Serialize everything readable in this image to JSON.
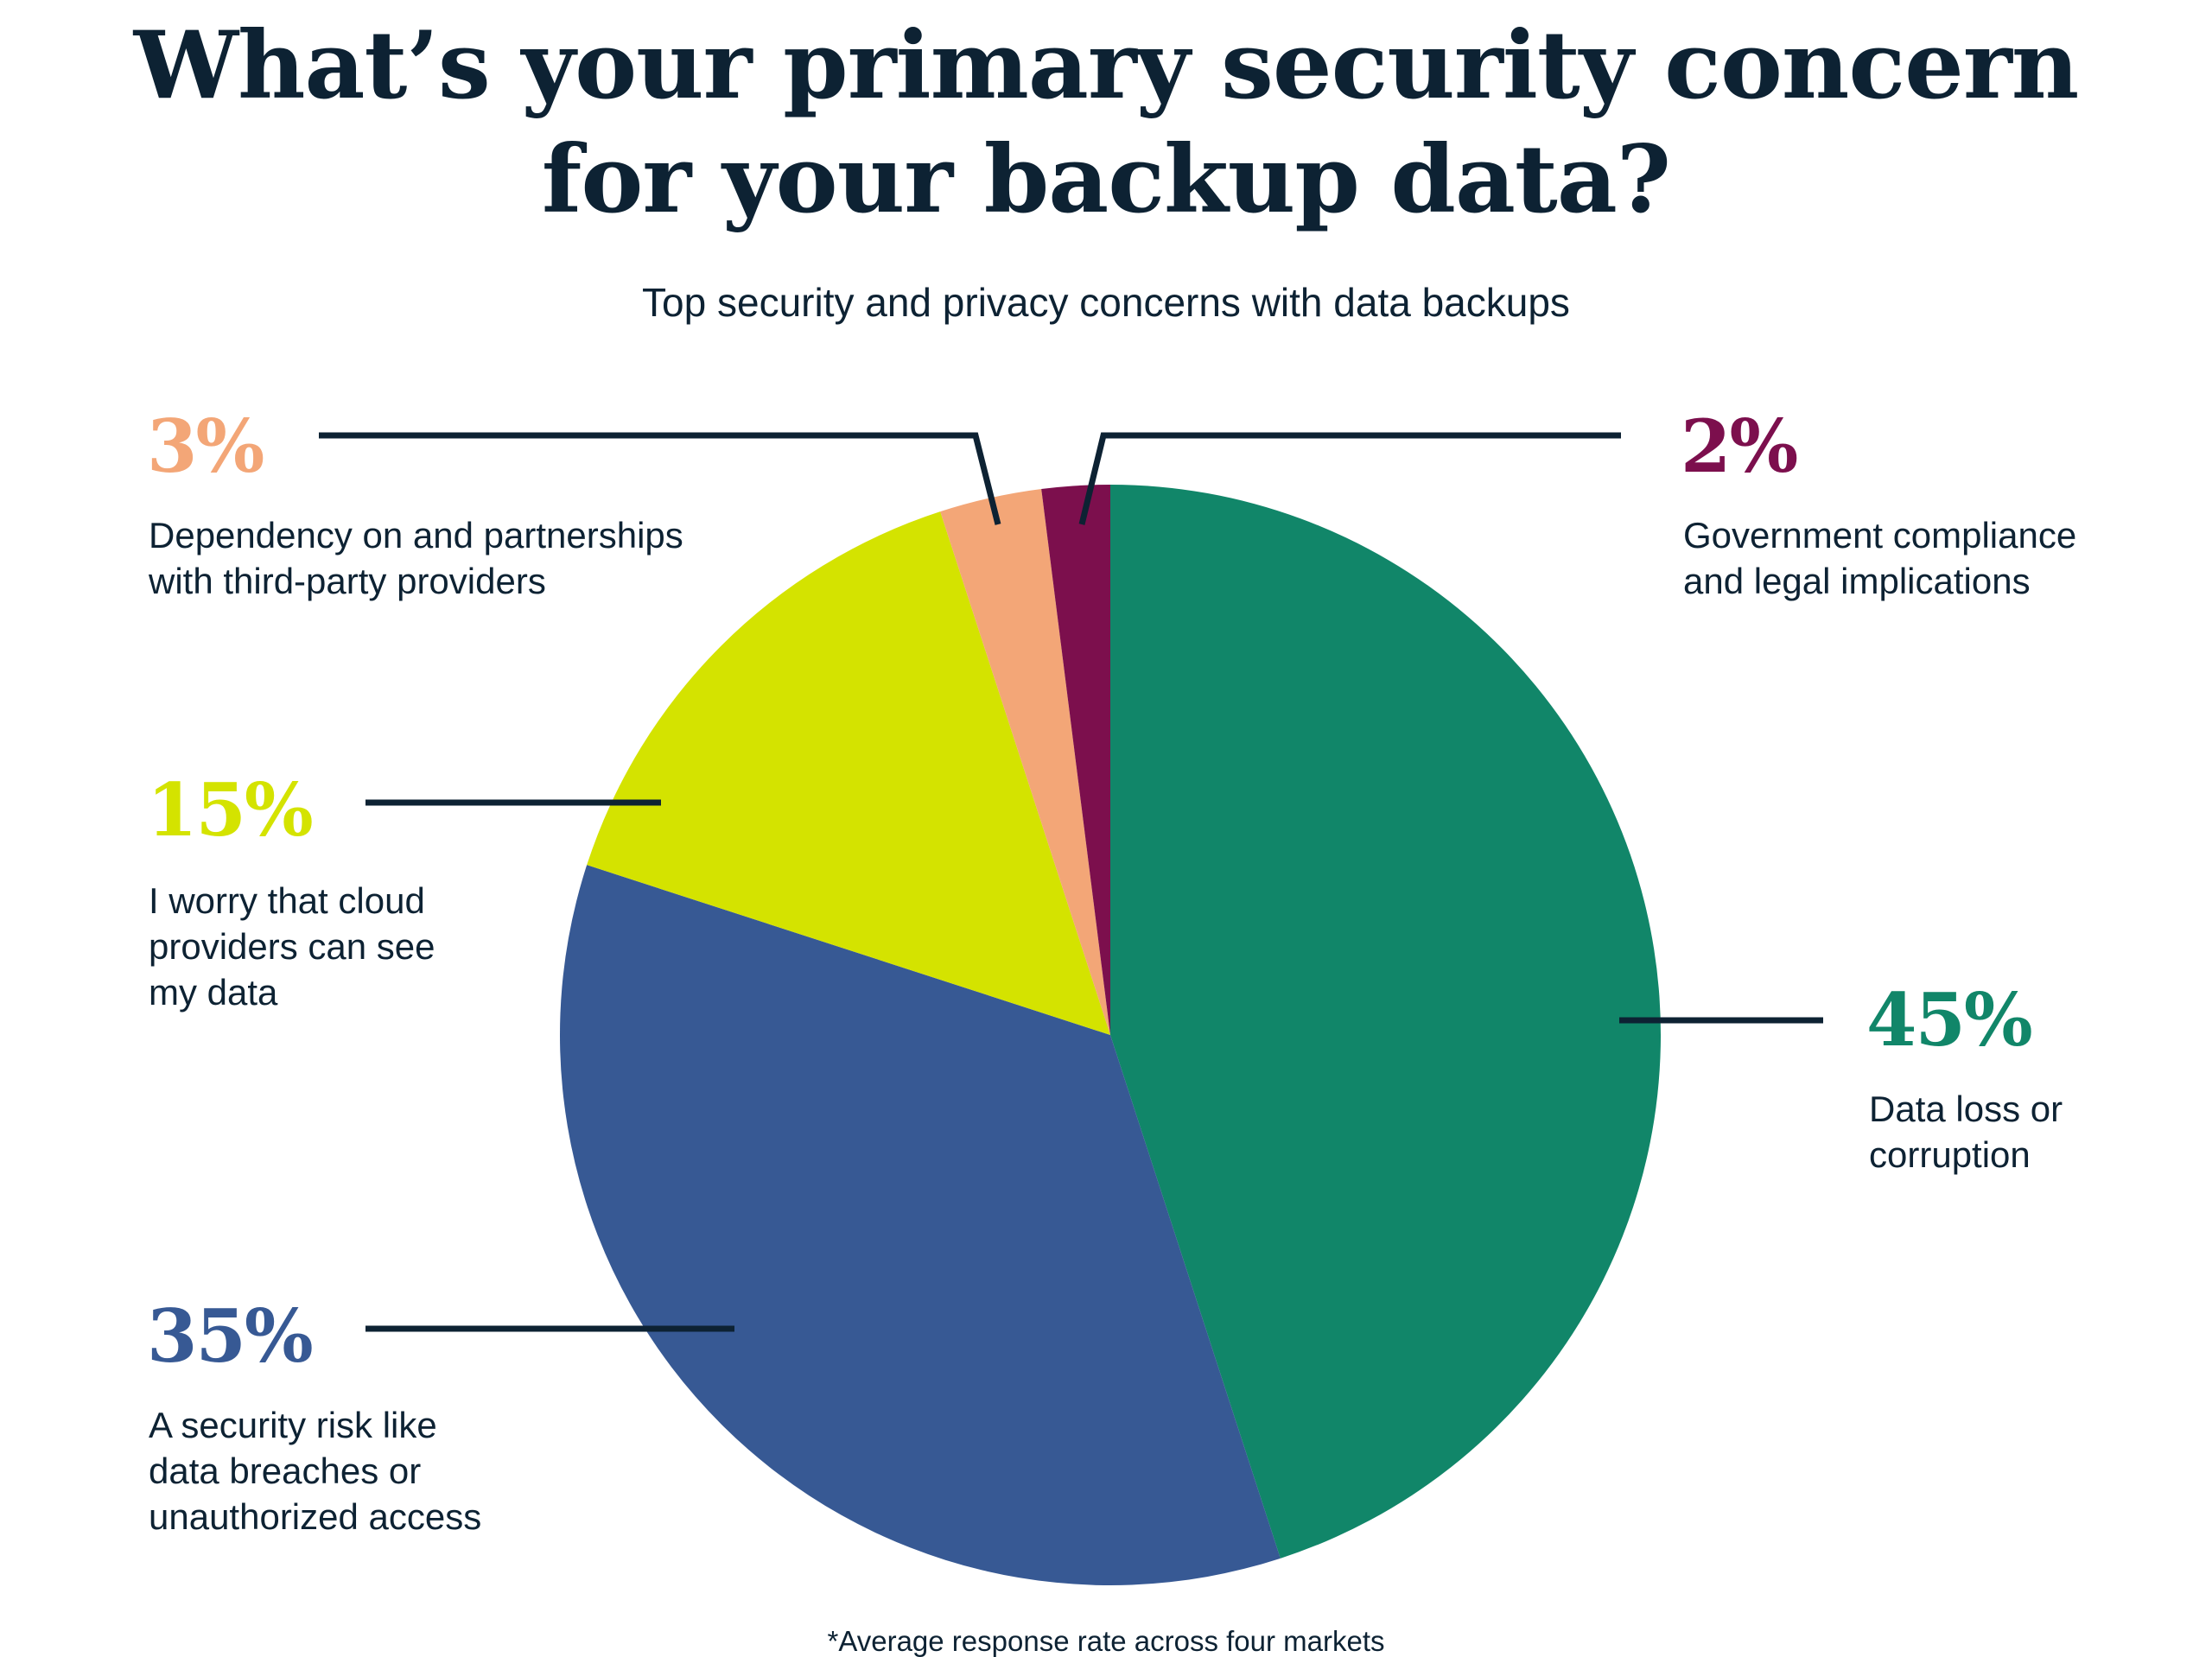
{
  "chart_data": {
    "type": "pie",
    "title": [
      "What’s your primary security concern",
      "for your backup data?"
    ],
    "subtitle": "Top security and privacy concerns with data backups",
    "footnote": "*Average response rate across four markets",
    "start_angle": "12 o'clock",
    "direction": "clockwise",
    "slices": [
      {
        "label_lines": [
          "Data loss or",
          "corruption"
        ],
        "value": 45,
        "pct_label": "45%",
        "color": "#118669"
      },
      {
        "label_lines": [
          "A security risk like",
          "data breaches or",
          "unauthorized access"
        ],
        "value": 35,
        "pct_label": "35%",
        "color": "#375994"
      },
      {
        "label_lines": [
          "I worry that cloud",
          "providers can see",
          "my data"
        ],
        "value": 15,
        "pct_label": "15%",
        "color": "#d4e300"
      },
      {
        "label_lines": [
          "Dependency on and partnerships",
          "with third-party providers"
        ],
        "value": 3,
        "pct_label": "3%",
        "color": "#f3a677"
      },
      {
        "label_lines": [
          "Government compliance",
          "and legal implications"
        ],
        "value": 2,
        "pct_label": "2%",
        "color": "#7c0f4d"
      }
    ],
    "text_color": "#0d2233"
  }
}
